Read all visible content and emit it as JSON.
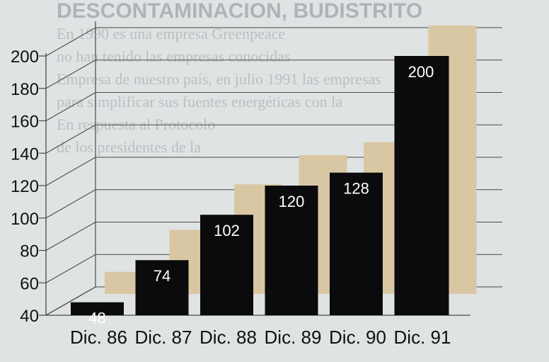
{
  "background_text": {
    "heading": "DESCONTAMINACION, BUDISTRITO",
    "lines": [
      "En 1990 es una empresa Greenpeace",
      "no han tenido las empresas conocidas",
      "Empresa de nuestro país, en julio 1991 las empresas",
      "para simplificar sus fuentes energéticas con la",
      "En respuesta al Protocolo",
      "de los presidentes de la"
    ]
  },
  "chart_data": {
    "type": "bar",
    "categories": [
      "Dic. 86",
      "Dic. 87",
      "Dic. 88",
      "Dic. 89",
      "Dic. 90",
      "Dic. 91"
    ],
    "values": [
      48,
      74,
      102,
      120,
      128,
      200
    ],
    "ylim": [
      40,
      200
    ],
    "yticks": [
      40,
      60,
      80,
      100,
      120,
      140,
      160,
      180,
      200
    ],
    "title": "",
    "xlabel": "",
    "ylabel": "",
    "grid": true,
    "colors": {
      "bar_front": "#0b0b0d",
      "bar_shadow": "#d9c7a4",
      "grid": "#4a4a4a",
      "label": "#ffffff",
      "background": "#dfe3e3"
    }
  }
}
